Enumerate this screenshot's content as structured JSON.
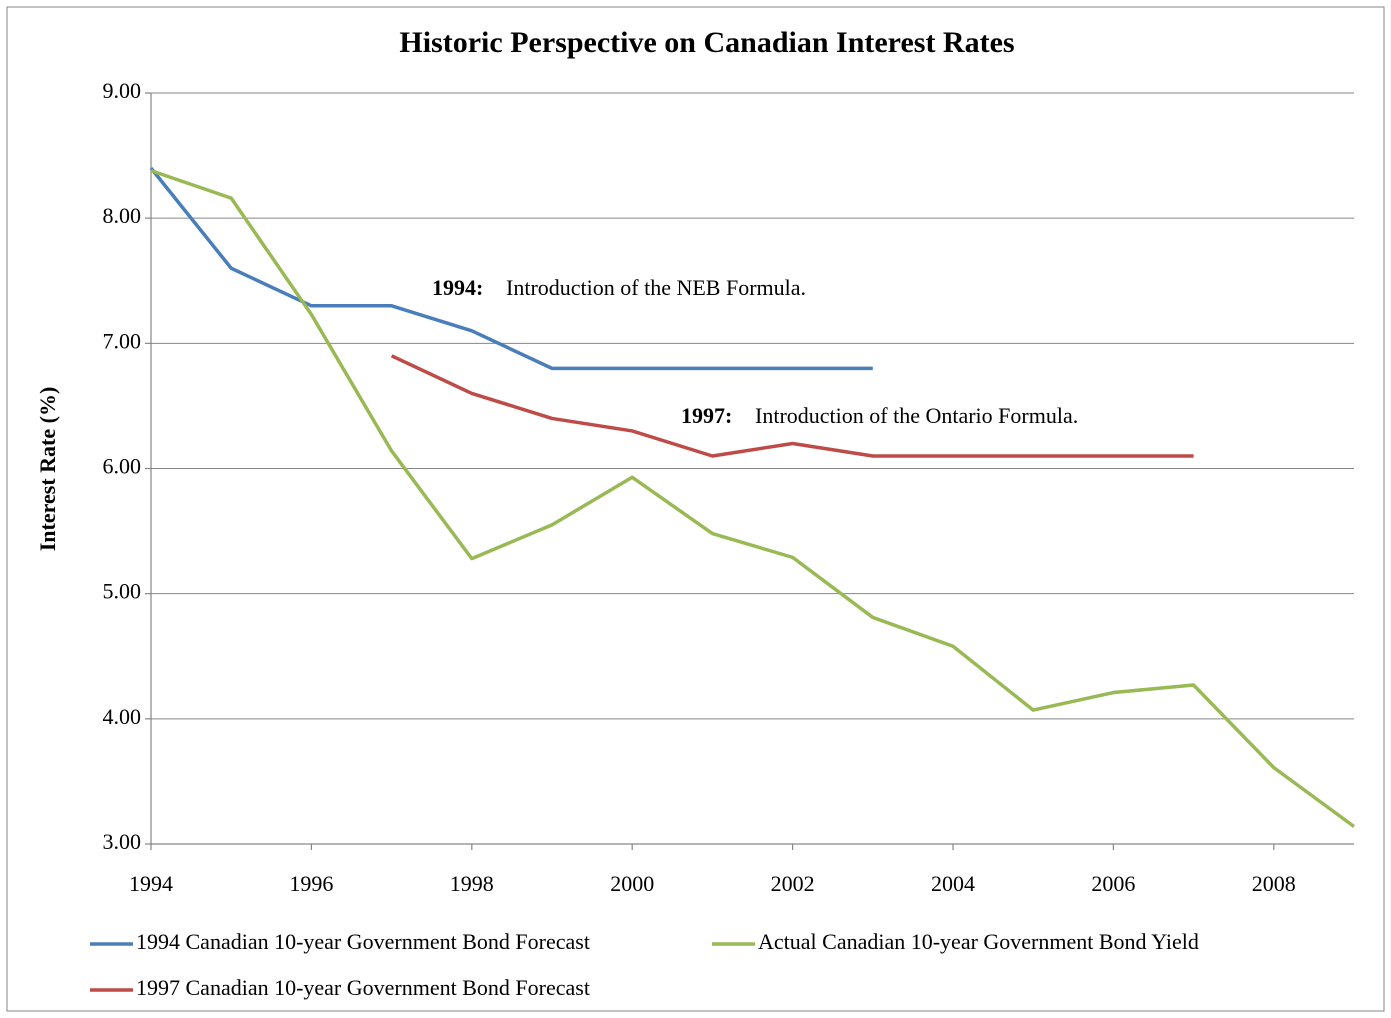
{
  "chart_data": {
    "type": "line",
    "title": "Historic Perspective on Canadian Interest Rates",
    "y_label": "Interest Rate (%)",
    "x": [
      1994,
      1995,
      1996,
      1997,
      1998,
      1999,
      2000,
      2001,
      2002,
      2003,
      2004,
      2005,
      2006,
      2007,
      2008,
      2009
    ],
    "series": [
      {
        "name": "1994 Canadian 10-year Government Bond Forecast",
        "color": "#4a7ebb",
        "values": [
          8.4,
          7.6,
          7.3,
          7.3,
          7.1,
          6.8,
          6.8,
          6.8,
          6.8,
          6.8,
          null,
          null,
          null,
          null,
          null,
          null
        ]
      },
      {
        "name": "Actual Canadian 10-year Government Bond Yield",
        "color": "#98b954",
        "values": [
          8.38,
          8.16,
          7.23,
          6.14,
          5.28,
          5.55,
          5.93,
          5.48,
          5.29,
          4.81,
          4.58,
          4.07,
          4.21,
          4.27,
          3.61,
          3.14
        ]
      },
      {
        "name": "1997 Canadian 10-year Government Bond Forecast",
        "color": "#be4b48",
        "values": [
          null,
          null,
          null,
          6.9,
          6.6,
          6.4,
          6.3,
          6.1,
          6.2,
          6.1,
          6.1,
          6.1,
          6.1,
          6.1,
          null,
          null
        ]
      }
    ],
    "annotations": [
      {
        "bold": "1994:",
        "text": "Introduction of the NEB Formula."
      },
      {
        "bold": "1997:",
        "text": "Introduction of the Ontario Formula."
      }
    ],
    "xlim": [
      1994,
      2009
    ],
    "xticks": [
      1994,
      1996,
      1998,
      2000,
      2002,
      2004,
      2006,
      2008
    ],
    "ylim": [
      3,
      9
    ],
    "yticks": [
      {
        "value": 3,
        "label": "3.00"
      },
      {
        "value": 4,
        "label": "4.00"
      },
      {
        "value": 5,
        "label": "5.00"
      },
      {
        "value": 6,
        "label": "6.00"
      },
      {
        "value": 7,
        "label": "7.00"
      },
      {
        "value": 8,
        "label": "8.00"
      },
      {
        "value": 9,
        "label": "9.00"
      }
    ],
    "grid": true
  }
}
